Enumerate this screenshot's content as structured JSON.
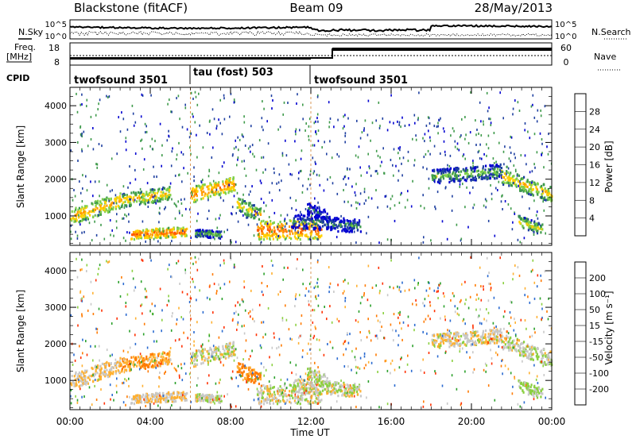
{
  "header": {
    "station": "Blackstone (fitACF)",
    "beam": "Beam 09",
    "date": "28/May/2013"
  },
  "noise_panel": {
    "left_label": "N.Sky",
    "right_label": "N.Search",
    "left_ticks": [
      "10^5",
      "10^0"
    ],
    "right_ticks": [
      "10^5",
      "10^0"
    ]
  },
  "freq_panel": {
    "left_label_top": "Freq.",
    "left_label_bottom": "[MHz]",
    "right_label": "Nave",
    "left_ticks": [
      "18",
      "8"
    ],
    "right_ticks": [
      "60",
      "0"
    ]
  },
  "cpid": {
    "label": "CPID",
    "segments": [
      {
        "name": "twofsound 3501",
        "start_hour": 0,
        "end_hour": 6
      },
      {
        "name": "tau (fost) 503",
        "start_hour": 6,
        "end_hour": 12
      },
      {
        "name": "twofsound 3501",
        "start_hour": 12,
        "end_hour": 24
      }
    ]
  },
  "power_colorbar": {
    "label": "Power [dB]",
    "ticks": [
      "28",
      "24",
      "20",
      "16",
      "12",
      "8",
      "4"
    ],
    "colors": [
      "#e60000",
      "#ff5a00",
      "#ff9a00",
      "#ffd000",
      "#7fd04a",
      "#3e9a4a",
      "#1e3fa0",
      "#0000d0"
    ]
  },
  "velocity_colorbar": {
    "label": "Velocity [m s⁻¹]",
    "ticks": [
      "200",
      "100",
      "50",
      "15",
      "-15",
      "-50",
      "-100",
      "-200"
    ],
    "colors": [
      "#1a1a9a",
      "#2a6ad0",
      "#2aa02a",
      "#8ad040",
      "#c8c8c8",
      "#ffb030",
      "#ff7a00",
      "#ff3000",
      "#e00000"
    ]
  },
  "chart_data": {
    "type": "heatmap",
    "xlabel": "Time UT",
    "ylabel": "Slant Range [km]",
    "x_ticks": [
      "00:00",
      "04:00",
      "08:00",
      "12:00",
      "16:00",
      "20:00",
      "00:00"
    ],
    "y_ticks": [
      "1000",
      "2000",
      "3000",
      "4000"
    ],
    "xlim_hours": [
      0,
      24
    ],
    "ylim_km": [
      200,
      4500
    ],
    "grid": false,
    "scatter_bands": [
      {
        "start_h": 0.0,
        "end_h": 2.5,
        "range_start": 1000,
        "range_end": 1450,
        "width": 420,
        "power": 22,
        "velocity": -20
      },
      {
        "start_h": 2.5,
        "end_h": 5.0,
        "range_start": 1450,
        "range_end": 1650,
        "width": 380,
        "power": 20,
        "velocity": -40
      },
      {
        "start_h": 3.0,
        "end_h": 5.8,
        "range_start": 520,
        "range_end": 600,
        "width": 260,
        "power": 26,
        "velocity": -15
      },
      {
        "start_h": 6.0,
        "end_h": 8.2,
        "range_start": 1600,
        "range_end": 1900,
        "width": 420,
        "power": 24,
        "velocity": 0
      },
      {
        "start_h": 6.2,
        "end_h": 7.5,
        "range_start": 560,
        "range_end": 520,
        "width": 200,
        "power": 14,
        "velocity": 5
      },
      {
        "start_h": 8.3,
        "end_h": 9.5,
        "range_start": 1350,
        "range_end": 1050,
        "width": 380,
        "power": 20,
        "velocity": -70
      },
      {
        "start_h": 9.3,
        "end_h": 12.5,
        "range_start": 650,
        "range_end": 650,
        "width": 520,
        "power": 26,
        "velocity": 0
      },
      {
        "start_h": 11.0,
        "end_h": 14.5,
        "range_start": 900,
        "range_end": 750,
        "width": 380,
        "power": 10,
        "velocity": 5
      },
      {
        "start_h": 11.8,
        "end_h": 12.8,
        "range_start": 1250,
        "range_end": 1000,
        "width": 300,
        "power": 8,
        "velocity": 10
      },
      {
        "start_h": 18.0,
        "end_h": 21.5,
        "range_start": 2100,
        "range_end": 2250,
        "width": 380,
        "power": 14,
        "velocity": -5
      },
      {
        "start_h": 21.5,
        "end_h": 24.0,
        "range_start": 2100,
        "range_end": 1600,
        "width": 420,
        "power": 20,
        "velocity": 10
      },
      {
        "start_h": 22.3,
        "end_h": 23.5,
        "range_start": 900,
        "range_end": 650,
        "width": 300,
        "power": 18,
        "velocity": 20
      }
    ]
  }
}
